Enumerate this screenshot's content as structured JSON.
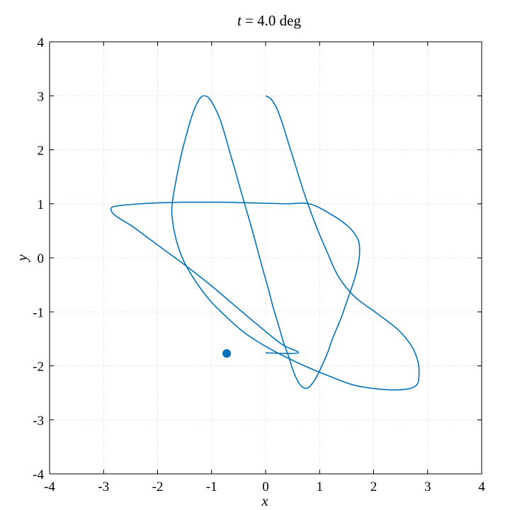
{
  "chart_data": {
    "type": "line",
    "title_var": "t",
    "title_rest": " = 4.0 deg",
    "xlabel": "x",
    "ylabel": "y",
    "xlim": [
      -4,
      4
    ],
    "ylim": [
      -4,
      4
    ],
    "xticks": [
      -4,
      -3,
      -2,
      -1,
      0,
      1,
      2,
      3,
      4
    ],
    "yticks": [
      -4,
      -3,
      -2,
      -1,
      0,
      1,
      2,
      3,
      4
    ],
    "xtick_labels": [
      "-4",
      "-3",
      "-2",
      "-1",
      "0",
      "1",
      "2",
      "3",
      "4"
    ],
    "ytick_labels": [
      "-4",
      "-3",
      "-2",
      "-1",
      "0",
      "1",
      "2",
      "3",
      "4"
    ],
    "grid": true,
    "series": [
      {
        "color": "#0072bd",
        "x": [
          0.0,
          0.1,
          0.21,
          0.32,
          0.43,
          0.55,
          0.67,
          0.8,
          0.95,
          1.12,
          1.35,
          1.65,
          2.05,
          2.45,
          2.7,
          2.82,
          2.84,
          2.8,
          2.62,
          2.22,
          1.65,
          1.18,
          0.72,
          0.28,
          -0.05,
          -0.4,
          -0.72,
          -1.03,
          -1.3,
          -1.52,
          -1.66,
          -1.73,
          -1.73,
          -1.68,
          -1.61,
          -1.54,
          -1.46,
          -1.38,
          -1.3,
          -1.21,
          -1.14,
          -1.05,
          -0.95,
          -0.85,
          -0.76,
          -0.67,
          -0.57,
          -0.47,
          -0.36,
          -0.25,
          -0.15,
          -0.05,
          0.05,
          0.14,
          0.24,
          0.33,
          0.43,
          0.51,
          0.6,
          0.69,
          0.78,
          0.87,
          0.97,
          1.06,
          1.15,
          1.23,
          1.32,
          1.41,
          1.49,
          1.57,
          1.65,
          1.71,
          1.74,
          1.71,
          1.54,
          1.22,
          0.81,
          0.4,
          0.0,
          -0.38,
          -0.76,
          -1.14,
          -1.53,
          -1.92,
          -2.32,
          -2.68,
          -2.86,
          -2.78,
          -2.45,
          -1.95,
          -1.5,
          -1.05,
          -0.6,
          -0.15,
          0.3,
          0.6,
          0.0
        ],
        "y": [
          3.0,
          2.94,
          2.76,
          2.46,
          2.1,
          1.72,
          1.33,
          0.95,
          0.55,
          0.15,
          -0.35,
          -0.72,
          -1.02,
          -1.33,
          -1.63,
          -1.92,
          -2.18,
          -2.35,
          -2.43,
          -2.44,
          -2.36,
          -2.19,
          -2.0,
          -1.79,
          -1.61,
          -1.38,
          -1.1,
          -0.79,
          -0.43,
          -0.05,
          0.35,
          0.75,
          1.0,
          1.32,
          1.68,
          2.0,
          2.3,
          2.58,
          2.8,
          2.96,
          3.0,
          2.96,
          2.8,
          2.58,
          2.3,
          1.98,
          1.64,
          1.28,
          0.9,
          0.52,
          0.15,
          -0.22,
          -0.57,
          -0.92,
          -1.25,
          -1.56,
          -1.84,
          -2.09,
          -2.29,
          -2.4,
          -2.41,
          -2.32,
          -2.15,
          -1.96,
          -1.75,
          -1.52,
          -1.3,
          -1.08,
          -0.85,
          -0.62,
          -0.38,
          -0.14,
          0.1,
          0.34,
          0.57,
          0.8,
          1.0,
          1.0,
          1.01,
          1.02,
          1.03,
          1.03,
          1.03,
          1.02,
          1.0,
          0.97,
          0.92,
          0.78,
          0.57,
          0.2,
          -0.13,
          -0.48,
          -0.86,
          -1.24,
          -1.6,
          -1.76,
          -1.76
        ]
      }
    ],
    "marker": {
      "x": -0.72,
      "y": -1.77,
      "color": "#0072bd"
    }
  }
}
